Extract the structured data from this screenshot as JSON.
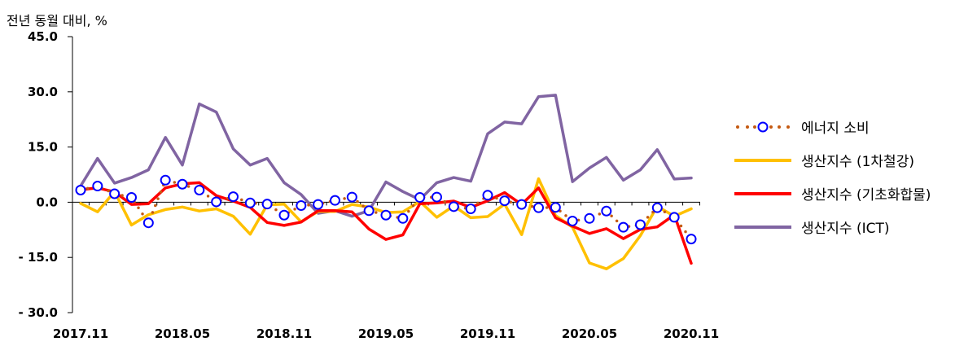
{
  "chart_data": {
    "type": "line",
    "ylabel": "전년 동월 대비, %",
    "ylim": [
      -30,
      45
    ],
    "yticks": [
      45,
      30,
      15,
      0,
      -15,
      -30
    ],
    "ytick_labels": [
      "45.0",
      "30.0",
      "15.0",
      "0.0",
      "- 15.0",
      "- 30.0"
    ],
    "x": [
      "2017.11",
      "2017.12",
      "2018.01",
      "2018.02",
      "2018.03",
      "2018.04",
      "2018.05",
      "2018.06",
      "2018.07",
      "2018.08",
      "2018.09",
      "2018.10",
      "2018.11",
      "2018.12",
      "2019.01",
      "2019.02",
      "2019.03",
      "2019.04",
      "2019.05",
      "2019.06",
      "2019.07",
      "2019.08",
      "2019.09",
      "2019.10",
      "2019.11",
      "2019.12",
      "2020.01",
      "2020.02",
      "2020.03",
      "2020.04",
      "2020.05",
      "2020.06",
      "2020.07",
      "2020.08",
      "2020.09",
      "2020.10",
      "2020.11"
    ],
    "xtick_labels": [
      "2017.11",
      "2018.05",
      "2018.11",
      "2019.05",
      "2019.11",
      "2020.05",
      "2020.11"
    ],
    "xtick_step": 6,
    "series": [
      {
        "name": "에너지 소비",
        "style": "dotted-circles",
        "color": "#C55A11",
        "marker_color": "#0000FF",
        "values": [
          3.3,
          4.4,
          2.3,
          1.3,
          -5.6,
          6.0,
          4.9,
          3.3,
          0.1,
          1.5,
          -0.2,
          -0.5,
          -3.5,
          -0.9,
          -0.6,
          0.5,
          1.4,
          -2.3,
          -3.5,
          -4.4,
          1.3,
          1.4,
          -1.2,
          -1.8,
          1.9,
          0.4,
          -0.6,
          -1.5,
          -1.4,
          -5.1,
          -4.4,
          -2.4,
          -6.8,
          -6.1,
          -1.5,
          -4.1,
          -10.0
        ]
      },
      {
        "name": "생산지수 (1차철강)",
        "style": "line",
        "color": "#FFC000",
        "values": [
          -0.3,
          -2.6,
          2.9,
          -6.2,
          -3.4,
          -2.0,
          -1.3,
          -2.4,
          -1.8,
          -3.8,
          -8.7,
          -0.7,
          -0.5,
          -5.3,
          -2.5,
          -2.5,
          -0.6,
          -1.3,
          -2.8,
          -2.6,
          0.2,
          -4.1,
          -1.0,
          -4.2,
          -3.9,
          -0.5,
          -8.8,
          6.4,
          -3.6,
          -6.8,
          -16.5,
          -18.1,
          -15.3,
          -9.1,
          -1.1,
          -3.8,
          -1.8
        ]
      },
      {
        "name": "생산지수 (기초화합물)",
        "style": "line",
        "color": "#FF0000",
        "values": [
          3.4,
          3.9,
          2.8,
          -0.6,
          -0.4,
          3.9,
          5.0,
          5.3,
          1.8,
          0.3,
          -1.4,
          -5.5,
          -6.3,
          -5.4,
          -2.3,
          -2.3,
          -2.6,
          -7.3,
          -10.1,
          -8.9,
          -0.4,
          -0.2,
          0.3,
          -1.4,
          0.4,
          2.6,
          -0.6,
          3.9,
          -4.2,
          -6.5,
          -8.5,
          -7.2,
          -9.9,
          -7.4,
          -6.7,
          -3.4,
          -16.6
        ]
      },
      {
        "name": "생산지수 (ICT)",
        "style": "line",
        "color": "#8064A2",
        "values": [
          4.4,
          11.9,
          5.2,
          6.7,
          8.8,
          17.6,
          10.1,
          26.7,
          24.5,
          14.5,
          10.1,
          11.9,
          5.3,
          2.1,
          -3.0,
          -2.3,
          -3.8,
          -2.3,
          5.5,
          2.9,
          0.7,
          5.3,
          6.7,
          5.7,
          18.6,
          21.8,
          21.3,
          28.7,
          29.1,
          5.6,
          9.3,
          12.2,
          6.0,
          8.8,
          14.3,
          6.3,
          6.6
        ]
      }
    ]
  }
}
